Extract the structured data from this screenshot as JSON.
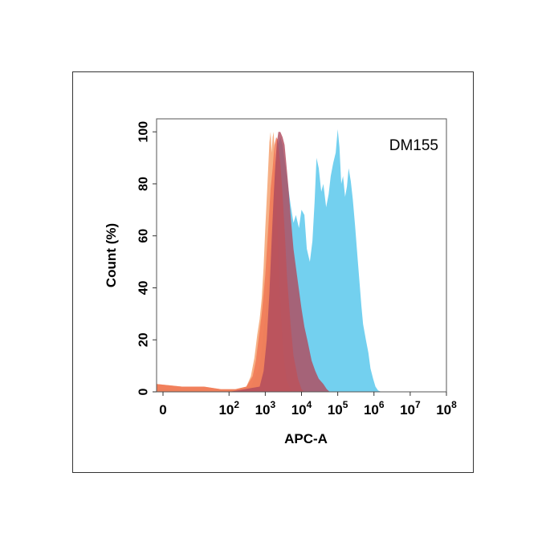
{
  "chart_data": {
    "type": "area",
    "title": "",
    "annotation": "DM155",
    "xlabel": "APC-A",
    "ylabel": "Count  (%)",
    "x_scale": "log",
    "xlim": [
      1,
      100000000
    ],
    "ylim": [
      0,
      105
    ],
    "grid": false,
    "x_ticks": [
      {
        "base": "0",
        "exp": "",
        "value": 1
      },
      {
        "base": "10",
        "exp": "2",
        "value": 100
      },
      {
        "base": "10",
        "exp": "3",
        "value": 1000
      },
      {
        "base": "10",
        "exp": "4",
        "value": 10000
      },
      {
        "base": "10",
        "exp": "5",
        "value": 100000
      },
      {
        "base": "10",
        "exp": "6",
        "value": 1000000
      },
      {
        "base": "10",
        "exp": "7",
        "value": 10000000
      },
      {
        "base": "10",
        "exp": "8",
        "value": 100000000
      }
    ],
    "y_ticks": [
      "0",
      "20",
      "40",
      "60",
      "80",
      "100"
    ],
    "series": [
      {
        "color": "#5bc8ec",
        "opacity": 0.85,
        "points": [
          [
            1,
            1
          ],
          [
            30,
            0.5
          ],
          [
            100,
            0.5
          ],
          [
            400,
            2
          ],
          [
            700,
            10
          ],
          [
            1000,
            30
          ],
          [
            1400,
            60
          ],
          [
            1800,
            80
          ],
          [
            2200,
            95
          ],
          [
            2600,
            98
          ],
          [
            3000,
            95
          ],
          [
            4000,
            82
          ],
          [
            5000,
            72
          ],
          [
            6000,
            65
          ],
          [
            7000,
            68
          ],
          [
            8500,
            63
          ],
          [
            10000,
            70
          ],
          [
            12000,
            68
          ],
          [
            14000,
            55
          ],
          [
            17000,
            50
          ],
          [
            20000,
            58
          ],
          [
            23000,
            73
          ],
          [
            26000,
            90
          ],
          [
            30000,
            86
          ],
          [
            35000,
            77
          ],
          [
            40000,
            80
          ],
          [
            48000,
            71
          ],
          [
            56000,
            76
          ],
          [
            64000,
            83
          ],
          [
            75000,
            88
          ],
          [
            88000,
            92
          ],
          [
            100000,
            101
          ],
          [
            112000,
            94
          ],
          [
            125000,
            80
          ],
          [
            140000,
            83
          ],
          [
            160000,
            75
          ],
          [
            180000,
            79
          ],
          [
            200000,
            86
          ],
          [
            230000,
            81
          ],
          [
            260000,
            74
          ],
          [
            300000,
            64
          ],
          [
            350000,
            52
          ],
          [
            400000,
            42
          ],
          [
            450000,
            33
          ],
          [
            500000,
            26
          ],
          [
            600000,
            20
          ],
          [
            700000,
            15
          ],
          [
            800000,
            9
          ],
          [
            950000,
            5
          ],
          [
            1100000,
            2
          ],
          [
            1300000,
            0.5
          ],
          [
            1600000,
            0
          ]
        ]
      },
      {
        "color": "#f5a270",
        "opacity": 0.85,
        "points": [
          [
            1,
            3
          ],
          [
            5,
            2
          ],
          [
            20,
            2
          ],
          [
            60,
            1
          ],
          [
            150,
            1
          ],
          [
            300,
            2
          ],
          [
            400,
            6
          ],
          [
            500,
            13
          ],
          [
            600,
            22
          ],
          [
            700,
            28
          ],
          [
            800,
            36
          ],
          [
            900,
            48
          ],
          [
            1000,
            63
          ],
          [
            1150,
            80
          ],
          [
            1300,
            96
          ],
          [
            1400,
            100
          ],
          [
            1500,
            92
          ],
          [
            1600,
            98
          ],
          [
            1700,
            100
          ],
          [
            1800,
            93
          ],
          [
            2000,
            76
          ],
          [
            2200,
            60
          ],
          [
            2500,
            40
          ],
          [
            2800,
            26
          ],
          [
            3300,
            12
          ],
          [
            4000,
            4
          ],
          [
            5000,
            1
          ],
          [
            6000,
            0
          ]
        ]
      },
      {
        "color": "#f07855",
        "opacity": 0.85,
        "points": [
          [
            1,
            3
          ],
          [
            5,
            2
          ],
          [
            20,
            2
          ],
          [
            60,
            1
          ],
          [
            150,
            1
          ],
          [
            300,
            2
          ],
          [
            450,
            6
          ],
          [
            550,
            12
          ],
          [
            650,
            20
          ],
          [
            800,
            30
          ],
          [
            1000,
            45
          ],
          [
            1200,
            62
          ],
          [
            1400,
            78
          ],
          [
            1600,
            86
          ],
          [
            1800,
            95
          ],
          [
            2000,
            98
          ],
          [
            2200,
            97
          ],
          [
            2600,
            88
          ],
          [
            3000,
            76
          ],
          [
            3500,
            60
          ],
          [
            4000,
            44
          ],
          [
            5000,
            26
          ],
          [
            6000,
            14
          ],
          [
            8000,
            5
          ],
          [
            10000,
            1
          ],
          [
            12000,
            0
          ]
        ]
      },
      {
        "color": "#b04a5e",
        "opacity": 0.82,
        "points": [
          [
            100,
            0
          ],
          [
            700,
            2
          ],
          [
            900,
            8
          ],
          [
            1100,
            20
          ],
          [
            1300,
            38
          ],
          [
            1500,
            58
          ],
          [
            1700,
            75
          ],
          [
            1900,
            88
          ],
          [
            2100,
            96
          ],
          [
            2300,
            100
          ],
          [
            2600,
            100
          ],
          [
            3000,
            98
          ],
          [
            3400,
            95
          ],
          [
            3800,
            88
          ],
          [
            4400,
            78
          ],
          [
            5000,
            68
          ],
          [
            6000,
            55
          ],
          [
            7000,
            48
          ],
          [
            8000,
            42
          ],
          [
            10000,
            32
          ],
          [
            12000,
            25
          ],
          [
            15000,
            19
          ],
          [
            19000,
            12
          ],
          [
            24000,
            8
          ],
          [
            30000,
            5
          ],
          [
            40000,
            3
          ],
          [
            50000,
            1
          ],
          [
            60000,
            0
          ]
        ]
      }
    ]
  }
}
